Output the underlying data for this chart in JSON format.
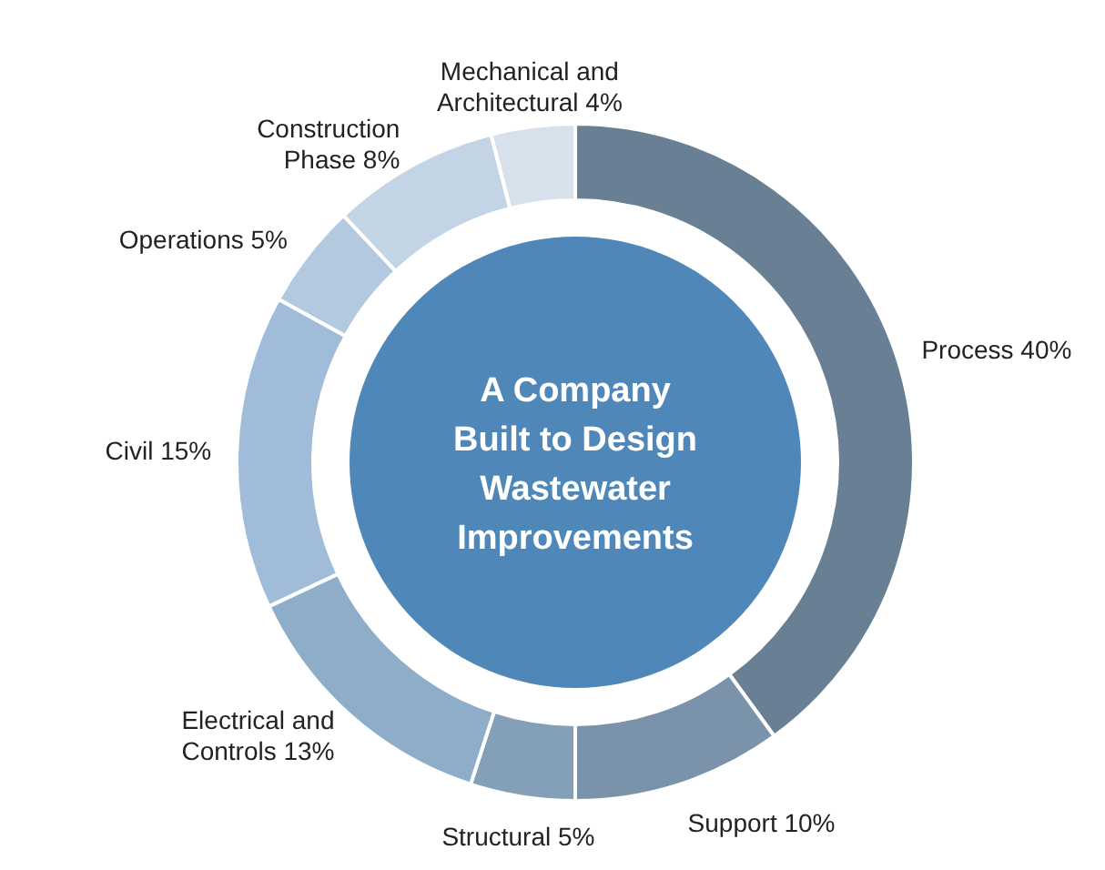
{
  "chart_data": {
    "type": "donut",
    "title": "A Company Built to Design Wastewater Improvements",
    "categories": [
      "Process",
      "Support",
      "Structural",
      "Electrical and Controls",
      "Civil",
      "Operations",
      "Construction Phase",
      "Mechanical and Architectural"
    ],
    "values": [
      40,
      10,
      5,
      13,
      15,
      5,
      8,
      4
    ],
    "value_labels": [
      "40%",
      "10%",
      "5%",
      "13%",
      "15%",
      "5%",
      "8%",
      "4%"
    ],
    "colors": [
      "#687f94",
      "#7a93aa",
      "#849fb8",
      "#8eadc9",
      "#a0bcd8",
      "#b3c9df",
      "#c3d4e5",
      "#d7e1eb"
    ]
  }
}
